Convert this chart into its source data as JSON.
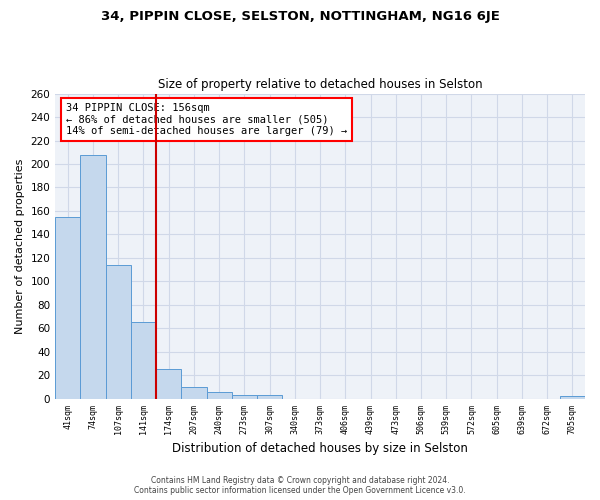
{
  "title": "34, PIPPIN CLOSE, SELSTON, NOTTINGHAM, NG16 6JE",
  "subtitle": "Size of property relative to detached houses in Selston",
  "xlabel": "Distribution of detached houses by size in Selston",
  "ylabel": "Number of detached properties",
  "categories": [
    "41sqm",
    "74sqm",
    "107sqm",
    "141sqm",
    "174sqm",
    "207sqm",
    "240sqm",
    "273sqm",
    "307sqm",
    "340sqm",
    "373sqm",
    "406sqm",
    "439sqm",
    "473sqm",
    "506sqm",
    "539sqm",
    "572sqm",
    "605sqm",
    "639sqm",
    "672sqm",
    "705sqm"
  ],
  "values": [
    155,
    208,
    114,
    65,
    25,
    10,
    6,
    3,
    3,
    0,
    0,
    0,
    0,
    0,
    0,
    0,
    0,
    0,
    0,
    0,
    2
  ],
  "bar_color": "#c5d8ed",
  "bar_edge_color": "#5b9bd5",
  "vline_x": 3.5,
  "vline_color": "#cc0000",
  "annotation_line1": "34 PIPPIN CLOSE: 156sqm",
  "annotation_line2": "← 86% of detached houses are smaller (505)",
  "annotation_line3": "14% of semi-detached houses are larger (79) →",
  "ylim": [
    0,
    260
  ],
  "yticks": [
    0,
    20,
    40,
    60,
    80,
    100,
    120,
    140,
    160,
    180,
    200,
    220,
    240,
    260
  ],
  "grid_color": "#d0d8e8",
  "background_color": "#eef2f8",
  "footer_line1": "Contains HM Land Registry data © Crown copyright and database right 2024.",
  "footer_line2": "Contains public sector information licensed under the Open Government Licence v3.0."
}
